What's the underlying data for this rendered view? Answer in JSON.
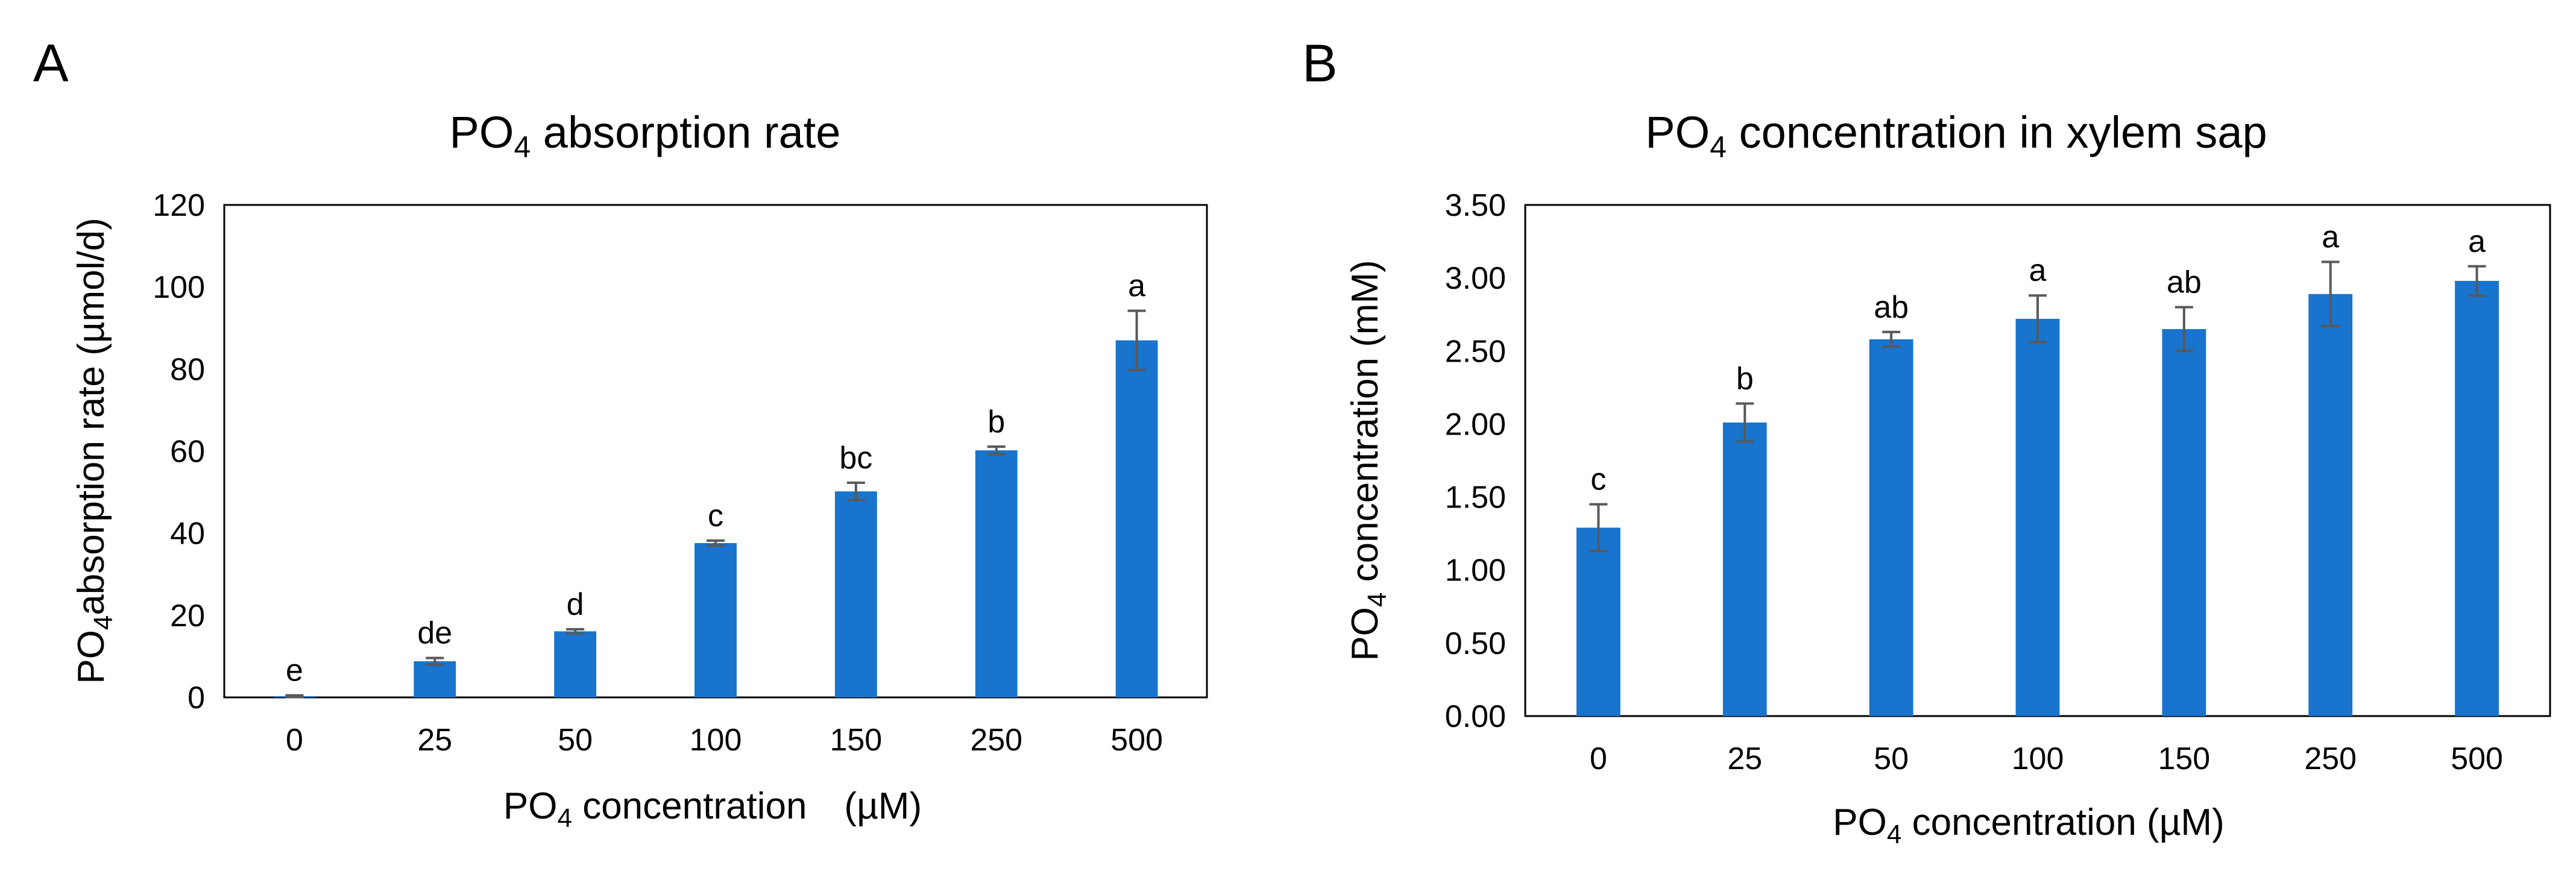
{
  "colors": {
    "bar": "#1874CD",
    "error_bar": "#595959",
    "axis": "#000000",
    "background": "#ffffff"
  },
  "chart_data": [
    {
      "panel": "A",
      "type": "bar",
      "title": {
        "main": "PO",
        "sub": "4",
        "rest": " absorption rate"
      },
      "xlabel": {
        "main": "PO",
        "sub": "4",
        "rest": " concentration　(µM)"
      },
      "ylabel": {
        "main": "PO",
        "sub": "4",
        "rest": "absorption rate (µmol/d)"
      },
      "categories": [
        "0",
        "25",
        "50",
        "100",
        "150",
        "250",
        "500"
      ],
      "values": [
        0.3,
        8.8,
        16.1,
        37.6,
        50.2,
        60.2,
        87.0
      ],
      "errors": [
        0.2,
        0.8,
        0.5,
        0.6,
        2.1,
        0.9,
        7.2
      ],
      "significance": [
        "e",
        "de",
        "d",
        "c",
        "bc",
        "b",
        "a"
      ],
      "ylim": [
        0,
        120
      ],
      "yticks": [
        "0",
        "20",
        "40",
        "60",
        "80",
        "100",
        "120"
      ],
      "grid": false,
      "legend": "none"
    },
    {
      "panel": "B",
      "type": "bar",
      "title": {
        "main": "PO",
        "sub": "4",
        "rest": " concentration in xylem sap"
      },
      "xlabel": {
        "main": "PO",
        "sub": "4",
        "rest": " concentration (µM)"
      },
      "ylabel": {
        "main": "PO",
        "sub": "4",
        "rest": " concentration (mM)"
      },
      "categories": [
        "0",
        "25",
        "50",
        "100",
        "150",
        "250",
        "500"
      ],
      "values": [
        1.29,
        2.01,
        2.58,
        2.72,
        2.65,
        2.89,
        2.98
      ],
      "errors": [
        0.16,
        0.13,
        0.05,
        0.16,
        0.15,
        0.22,
        0.1
      ],
      "significance": [
        "c",
        "b",
        "ab",
        "a",
        "ab",
        "a",
        "a"
      ],
      "ylim": [
        0,
        3.5
      ],
      "yticks": [
        "0.00",
        "0.50",
        "1.00",
        "1.50",
        "2.00",
        "2.50",
        "3.00",
        "3.50"
      ],
      "grid": false,
      "legend": "none"
    }
  ]
}
